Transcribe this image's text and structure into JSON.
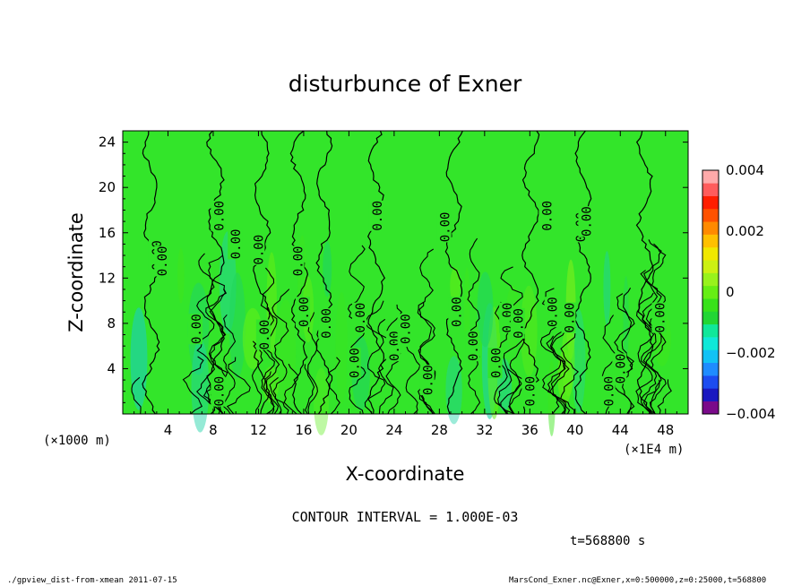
{
  "chart_data": {
    "type": "heatmap",
    "title": "disturbunce of Exner",
    "xlabel": "X-coordinate",
    "ylabel": "Z-coordinate",
    "x_scale_note": "(×1E4 m)",
    "y_scale_note": "(×1000 m)",
    "xlim": [
      0,
      50
    ],
    "ylim": [
      0,
      25
    ],
    "x_ticks": [
      4,
      8,
      12,
      16,
      20,
      24,
      28,
      32,
      36,
      40,
      44,
      48
    ],
    "y_ticks": [
      4,
      8,
      12,
      16,
      20,
      24
    ],
    "colorbar": {
      "range": [
        -0.004,
        0.004
      ],
      "tick_labels": [
        "0.004",
        "0.002",
        "0",
        "−0.002",
        "−0.004"
      ],
      "colors": [
        "#7a0a8a",
        "#1a18c0",
        "#1c4cf0",
        "#1f8cff",
        "#12c2f5",
        "#0fe8d8",
        "#10e79a",
        "#22d634",
        "#38e21a",
        "#66ee14",
        "#98f21c",
        "#ccf012",
        "#f0e800",
        "#ffc000",
        "#ff8a00",
        "#ff5200",
        "#ff1e00",
        "#ff5c5c",
        "#ffaaaa"
      ]
    },
    "contour_interval_text": "CONTOUR INTERVAL = 1.000E-03",
    "contour_label": "0.00",
    "contour_label_x": [
      3,
      3.5,
      6.5,
      8.5,
      8.5,
      10,
      12,
      12.5,
      15.5,
      16,
      18,
      20.5,
      21,
      22.5,
      24,
      25,
      27,
      28.5,
      29.5,
      31,
      33,
      34,
      35,
      36,
      37.5,
      38,
      39.5,
      40.5,
      41,
      43,
      44,
      47.5
    ],
    "contour_label_y": [
      14,
      13.5,
      7.5,
      2,
      17.5,
      15,
      14.5,
      7,
      13.5,
      9,
      8,
      4.5,
      8.5,
      17.5,
      6,
      7.5,
      3,
      16.5,
      9,
      6,
      4.5,
      8.5,
      8,
      2,
      17.5,
      9,
      8.5,
      16.5,
      17,
      2,
      4,
      8.5
    ]
  },
  "time_label": "t=568800 s",
  "footer": {
    "left": "./gpview_dist-from-xmean  2011-07-15",
    "right": "MarsCond_Exner.nc@Exner,x=0:500000,z=0:25000,t=568800"
  }
}
